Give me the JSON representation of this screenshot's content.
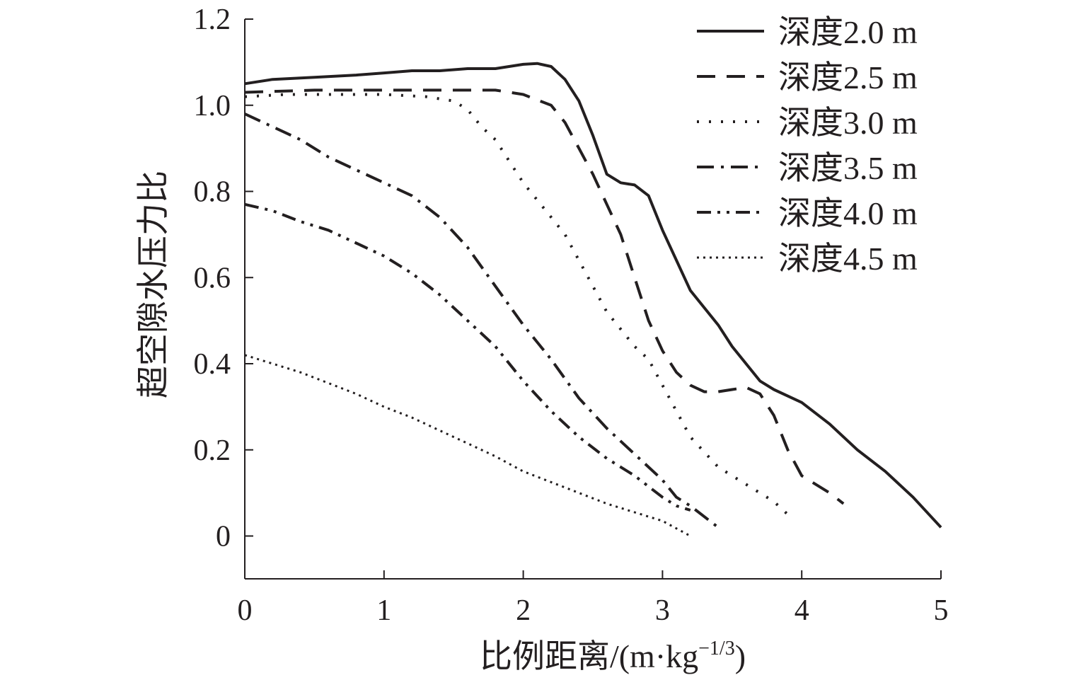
{
  "chart_data": {
    "type": "line",
    "xlabel": "比例距离/(m·kg",
    "xlabel_sup": "−1/3",
    "xlabel_tail": ")",
    "ylabel": "超空隙水压力比",
    "xlim": [
      0,
      5
    ],
    "ylim": [
      -0.1,
      1.2
    ],
    "xticks": [
      0,
      1,
      2,
      3,
      4,
      5
    ],
    "yticks": [
      0,
      0.2,
      0.4,
      0.6,
      0.8,
      1.0,
      1.2
    ],
    "xtick_labels": [
      "0",
      "1",
      "2",
      "3",
      "4",
      "5"
    ],
    "ytick_labels": [
      "0",
      "0.2",
      "0.4",
      "0.6",
      "0.8",
      "1.0",
      "1.2"
    ],
    "grid": false,
    "legend_position": "top-right",
    "series": [
      {
        "name": "深度2.0 m",
        "style": "solid",
        "x": [
          0,
          0.2,
          0.5,
          0.8,
          1.0,
          1.2,
          1.4,
          1.6,
          1.8,
          2.0,
          2.1,
          2.2,
          2.3,
          2.4,
          2.5,
          2.6,
          2.7,
          2.8,
          2.9,
          3.0,
          3.1,
          3.2,
          3.4,
          3.5,
          3.6,
          3.7,
          3.8,
          4.0,
          4.2,
          4.4,
          4.6,
          4.8,
          5.0
        ],
        "y": [
          1.05,
          1.06,
          1.065,
          1.07,
          1.075,
          1.08,
          1.08,
          1.085,
          1.085,
          1.095,
          1.097,
          1.09,
          1.06,
          1.01,
          0.93,
          0.84,
          0.82,
          0.815,
          0.79,
          0.71,
          0.64,
          0.57,
          0.49,
          0.44,
          0.4,
          0.36,
          0.34,
          0.31,
          0.26,
          0.2,
          0.15,
          0.09,
          0.02
        ]
      },
      {
        "name": "深度2.5 m",
        "style": "dash",
        "x": [
          0,
          0.5,
          1.0,
          1.5,
          1.8,
          2.0,
          2.2,
          2.3,
          2.4,
          2.5,
          2.6,
          2.7,
          2.8,
          2.9,
          3.0,
          3.1,
          3.2,
          3.3,
          3.4,
          3.5,
          3.6,
          3.7,
          3.8,
          3.9,
          4.0,
          4.2,
          4.3
        ],
        "y": [
          1.03,
          1.035,
          1.035,
          1.035,
          1.035,
          1.025,
          1.0,
          0.96,
          0.9,
          0.84,
          0.77,
          0.7,
          0.6,
          0.5,
          0.43,
          0.38,
          0.35,
          0.335,
          0.335,
          0.34,
          0.345,
          0.33,
          0.28,
          0.2,
          0.14,
          0.1,
          0.075
        ]
      },
      {
        "name": "深度3.0 m",
        "style": "dot",
        "x": [
          0,
          0.3,
          0.6,
          1.0,
          1.3,
          1.5,
          1.6,
          1.7,
          1.8,
          1.9,
          2.0,
          2.1,
          2.2,
          2.3,
          2.4,
          2.5,
          2.6,
          2.7,
          2.8,
          2.9,
          3.0,
          3.1,
          3.2,
          3.4,
          3.6,
          3.8,
          3.9
        ],
        "y": [
          1.02,
          1.025,
          1.025,
          1.025,
          1.02,
          1.01,
          0.99,
          0.95,
          0.92,
          0.87,
          0.82,
          0.78,
          0.74,
          0.7,
          0.64,
          0.58,
          0.52,
          0.48,
          0.44,
          0.41,
          0.35,
          0.29,
          0.23,
          0.16,
          0.12,
          0.08,
          0.05
        ]
      },
      {
        "name": "深度3.5 m",
        "style": "dashdot",
        "x": [
          0,
          0.2,
          0.4,
          0.6,
          0.8,
          1.0,
          1.2,
          1.4,
          1.6,
          1.8,
          2.0,
          2.2,
          2.4,
          2.6,
          2.8,
          3.0,
          3.1,
          3.2,
          3.3,
          3.4
        ],
        "y": [
          0.98,
          0.95,
          0.92,
          0.88,
          0.85,
          0.82,
          0.79,
          0.74,
          0.67,
          0.58,
          0.49,
          0.41,
          0.32,
          0.25,
          0.19,
          0.13,
          0.09,
          0.07,
          0.045,
          0.02
        ]
      },
      {
        "name": "深度4.0 m",
        "style": "dashdotdot",
        "x": [
          0,
          0.2,
          0.4,
          0.6,
          0.8,
          1.0,
          1.2,
          1.4,
          1.6,
          1.8,
          2.0,
          2.2,
          2.4,
          2.6,
          2.8,
          3.0,
          3.1,
          3.2
        ],
        "y": [
          0.77,
          0.755,
          0.73,
          0.71,
          0.68,
          0.65,
          0.61,
          0.56,
          0.5,
          0.44,
          0.36,
          0.29,
          0.23,
          0.18,
          0.14,
          0.09,
          0.07,
          0.06
        ]
      },
      {
        "name": "深度4.5 m",
        "style": "finedot",
        "x": [
          0,
          0.2,
          0.4,
          0.6,
          0.8,
          1.0,
          1.2,
          1.4,
          1.6,
          1.8,
          2.0,
          2.2,
          2.4,
          2.6,
          2.8,
          3.0,
          3.2
        ],
        "y": [
          0.42,
          0.4,
          0.38,
          0.355,
          0.33,
          0.3,
          0.275,
          0.245,
          0.215,
          0.185,
          0.15,
          0.125,
          0.1,
          0.075,
          0.055,
          0.035,
          0.0
        ]
      }
    ]
  }
}
